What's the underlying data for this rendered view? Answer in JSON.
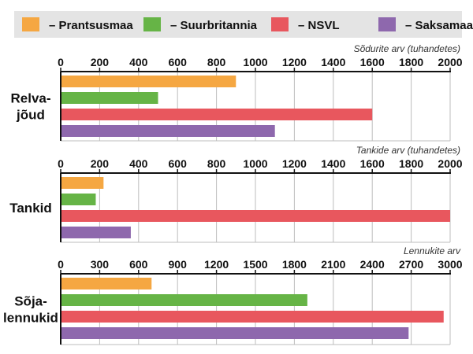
{
  "chart_data": [
    {
      "type": "bar",
      "orientation": "horizontal",
      "group_label": [
        "Relva-",
        "jõud"
      ],
      "unit_label": "Sõdurite arv (tuhandetes)",
      "xlim": [
        0,
        2000
      ],
      "ticks": [
        0,
        200,
        400,
        600,
        800,
        1000,
        1200,
        1400,
        1600,
        1800,
        2000
      ],
      "series": [
        {
          "name": "– Prantsusmaa",
          "value": 900
        },
        {
          "name": "– Suurbritannia",
          "value": 500
        },
        {
          "name": "– NSVL",
          "value": 1600
        },
        {
          "name": "– Saksamaa",
          "value": 1100
        }
      ]
    },
    {
      "type": "bar",
      "orientation": "horizontal",
      "group_label": [
        "Tankid"
      ],
      "unit_label": "Tankide arv (tuhandetes)",
      "xlim": [
        0,
        2000
      ],
      "ticks": [
        0,
        200,
        400,
        600,
        800,
        1000,
        1200,
        1400,
        1600,
        1800,
        2000
      ],
      "series": [
        {
          "name": "– Prantsusmaa",
          "value": 220
        },
        {
          "name": "– Suurbritannia",
          "value": 180
        },
        {
          "name": "– NSVL",
          "value": 2000
        },
        {
          "name": "– Saksamaa",
          "value": 360
        }
      ]
    },
    {
      "type": "bar",
      "orientation": "horizontal",
      "group_label": [
        "Sõja-",
        "lennukid"
      ],
      "unit_label": "Lennukite arv",
      "xlim": [
        0,
        3000
      ],
      "ticks": [
        0,
        300,
        600,
        900,
        1200,
        1500,
        1800,
        2100,
        2400,
        2700,
        3000
      ],
      "series": [
        {
          "name": "– Prantsusmaa",
          "value": 700
        },
        {
          "name": "– Suurbritannia",
          "value": 1900
        },
        {
          "name": "– NSVL",
          "value": 2950
        },
        {
          "name": "– Saksamaa",
          "value": 2680
        }
      ]
    }
  ],
  "legend": [
    {
      "label": "– Prantsusmaa",
      "color": "#F5A742"
    },
    {
      "label": "– Suurbritannia",
      "color": "#66B446"
    },
    {
      "label": "– NSVL",
      "color": "#E8575E"
    },
    {
      "label": "– Saksamaa",
      "color": "#8E68AD"
    }
  ],
  "colors": {
    "legend_background": "#E4E4E4",
    "grid": "#BDBDBD",
    "axis": "#111111",
    "text": "#111111"
  }
}
